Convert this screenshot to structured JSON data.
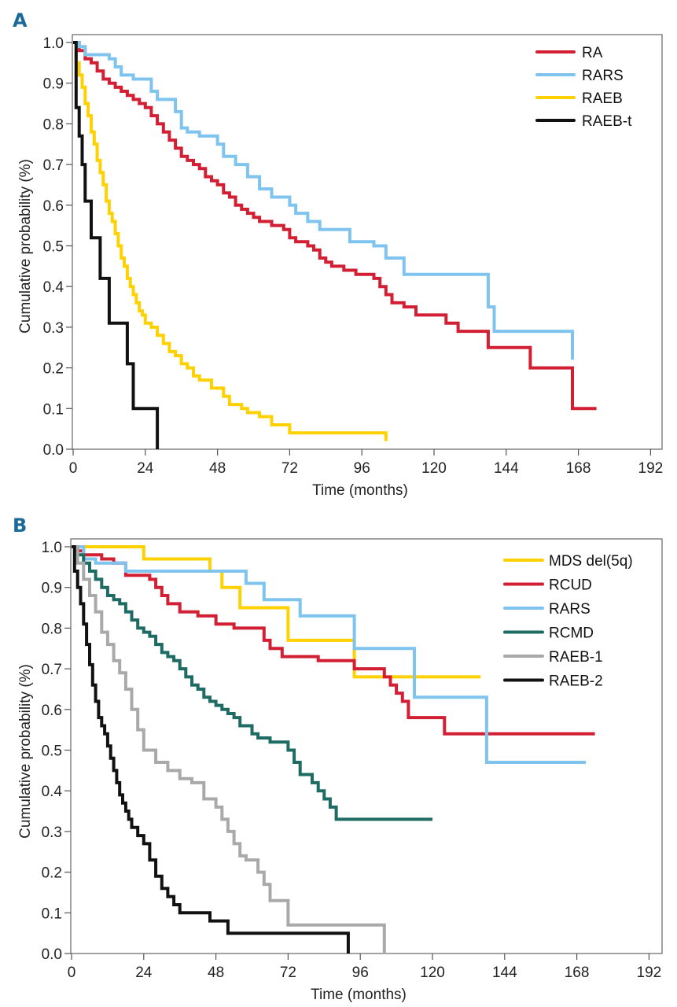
{
  "chart_data": [
    {
      "panel": "A",
      "type": "line",
      "subtype": "kaplan-meier-step",
      "title": "",
      "xlabel": "Time (months)",
      "ylabel": "Cumulative probability (%)",
      "xlim": [
        0,
        192
      ],
      "ylim": [
        0,
        1.0
      ],
      "xticks": [
        "0",
        "24",
        "48",
        "72",
        "96",
        "120",
        "144",
        "168",
        "192"
      ],
      "xtick_values": [
        0,
        24,
        48,
        72,
        96,
        120,
        144,
        168,
        192
      ],
      "yticks": [
        "0.0",
        "0.1",
        "0.2",
        "0.3",
        "0.4",
        "0.5",
        "0.6",
        "0.7",
        "0.8",
        "0.9",
        "1.0"
      ],
      "ytick_values": [
        0,
        0.1,
        0.2,
        0.3,
        0.4,
        0.5,
        0.6,
        0.7,
        0.8,
        0.9,
        1.0
      ],
      "grid": false,
      "legend_position": "top-right",
      "series": [
        {
          "name": "RA",
          "color": "#d21f34",
          "x": [
            0,
            2,
            4,
            6,
            8,
            10,
            12,
            14,
            16,
            18,
            20,
            22,
            24,
            26,
            28,
            30,
            32,
            34,
            36,
            38,
            40,
            42,
            44,
            46,
            48,
            50,
            52,
            54,
            56,
            58,
            60,
            62,
            64,
            66,
            70,
            72,
            74,
            78,
            80,
            82,
            84,
            86,
            90,
            94,
            96,
            100,
            102,
            104,
            106,
            110,
            114,
            124,
            128,
            138,
            152,
            166,
            174
          ],
          "y": [
            1.0,
            0.98,
            0.96,
            0.95,
            0.93,
            0.91,
            0.9,
            0.89,
            0.88,
            0.87,
            0.86,
            0.85,
            0.84,
            0.82,
            0.8,
            0.78,
            0.76,
            0.74,
            0.72,
            0.71,
            0.7,
            0.69,
            0.67,
            0.66,
            0.65,
            0.63,
            0.62,
            0.6,
            0.59,
            0.58,
            0.57,
            0.56,
            0.56,
            0.55,
            0.54,
            0.52,
            0.51,
            0.5,
            0.49,
            0.47,
            0.46,
            0.45,
            0.44,
            0.43,
            0.43,
            0.42,
            0.4,
            0.38,
            0.36,
            0.35,
            0.33,
            0.31,
            0.29,
            0.25,
            0.2,
            0.1,
            0.1
          ]
        },
        {
          "name": "RARS",
          "color": "#7fc4ef",
          "x": [
            0,
            2,
            4,
            12,
            14,
            16,
            20,
            26,
            28,
            34,
            36,
            38,
            42,
            48,
            50,
            54,
            58,
            62,
            66,
            72,
            74,
            78,
            82,
            92,
            100,
            104,
            110,
            138,
            140,
            166
          ],
          "y": [
            1.0,
            0.99,
            0.97,
            0.96,
            0.94,
            0.92,
            0.91,
            0.88,
            0.86,
            0.83,
            0.79,
            0.78,
            0.77,
            0.75,
            0.72,
            0.7,
            0.67,
            0.64,
            0.62,
            0.6,
            0.58,
            0.56,
            0.54,
            0.51,
            0.5,
            0.47,
            0.43,
            0.35,
            0.29,
            0.22
          ],
          "end_x": 166
        },
        {
          "name": "RAEB",
          "color": "#ffd100",
          "x": [
            0,
            1,
            2,
            3,
            4,
            5,
            6,
            7,
            8,
            9,
            10,
            11,
            12,
            13,
            14,
            15,
            16,
            17,
            18,
            19,
            20,
            21,
            22,
            23,
            24,
            26,
            28,
            30,
            32,
            34,
            36,
            38,
            40,
            42,
            46,
            50,
            52,
            56,
            58,
            62,
            66,
            72,
            104
          ],
          "y": [
            1.0,
            0.95,
            0.92,
            0.89,
            0.85,
            0.82,
            0.78,
            0.75,
            0.71,
            0.68,
            0.65,
            0.61,
            0.58,
            0.56,
            0.53,
            0.5,
            0.47,
            0.45,
            0.42,
            0.4,
            0.38,
            0.36,
            0.34,
            0.33,
            0.31,
            0.3,
            0.28,
            0.26,
            0.24,
            0.23,
            0.21,
            0.2,
            0.18,
            0.17,
            0.15,
            0.13,
            0.11,
            0.1,
            0.09,
            0.08,
            0.06,
            0.04,
            0.02
          ],
          "end_x": 104
        },
        {
          "name": "RAEB-t",
          "color": "#111111",
          "x": [
            0,
            1,
            2,
            3,
            4,
            6,
            9,
            12,
            18,
            20,
            28
          ],
          "y": [
            1.0,
            0.84,
            0.77,
            0.7,
            0.61,
            0.52,
            0.42,
            0.31,
            0.21,
            0.1,
            0.0
          ],
          "end_x": 28
        }
      ]
    },
    {
      "panel": "B",
      "type": "line",
      "subtype": "kaplan-meier-step",
      "title": "",
      "xlabel": "Time (months)",
      "ylabel": "Cumulative probability (%)",
      "xlim": [
        0,
        192
      ],
      "ylim": [
        0,
        1.0
      ],
      "xticks": [
        "0",
        "24",
        "48",
        "72",
        "96",
        "120",
        "144",
        "168",
        "192"
      ],
      "xtick_values": [
        0,
        24,
        48,
        72,
        96,
        120,
        144,
        168,
        192
      ],
      "yticks": [
        "0.0",
        "0.1",
        "0.2",
        "0.3",
        "0.4",
        "0.5",
        "0.6",
        "0.7",
        "0.8",
        "0.9",
        "1.0"
      ],
      "ytick_values": [
        0,
        0.1,
        0.2,
        0.3,
        0.4,
        0.5,
        0.6,
        0.7,
        0.8,
        0.9,
        1.0
      ],
      "grid": false,
      "legend_position": "top-right",
      "series": [
        {
          "name": "MDS del(5q)",
          "color": "#ffd100",
          "x": [
            0,
            24,
            46,
            50,
            56,
            62,
            72,
            94
          ],
          "y": [
            1.0,
            0.97,
            0.94,
            0.9,
            0.85,
            0.85,
            0.77,
            0.68
          ],
          "end_x": 136
        },
        {
          "name": "RCUD",
          "color": "#d21f34",
          "x": [
            0,
            2,
            4,
            10,
            14,
            18,
            26,
            28,
            30,
            32,
            36,
            42,
            48,
            54,
            60,
            64,
            66,
            70,
            82,
            94,
            104,
            106,
            108,
            110,
            112,
            124
          ],
          "y": [
            1.0,
            0.99,
            0.98,
            0.97,
            0.96,
            0.93,
            0.92,
            0.9,
            0.88,
            0.86,
            0.84,
            0.83,
            0.81,
            0.8,
            0.8,
            0.77,
            0.75,
            0.73,
            0.72,
            0.7,
            0.68,
            0.66,
            0.64,
            0.62,
            0.58,
            0.54
          ],
          "end_x": 174
        },
        {
          "name": "RARS",
          "color": "#7fc4ef",
          "x": [
            0,
            4,
            8,
            18,
            46,
            58,
            64,
            76,
            94,
            114,
            138
          ],
          "y": [
            1.0,
            0.97,
            0.96,
            0.94,
            0.94,
            0.91,
            0.87,
            0.83,
            0.75,
            0.63,
            0.47
          ],
          "end_x": 171
        },
        {
          "name": "RCMD",
          "color": "#1d6b62",
          "x": [
            0,
            2,
            4,
            6,
            8,
            10,
            12,
            14,
            16,
            18,
            20,
            22,
            24,
            26,
            28,
            30,
            32,
            34,
            36,
            38,
            40,
            42,
            44,
            46,
            48,
            50,
            52,
            54,
            56,
            58,
            60,
            62,
            66,
            72,
            74,
            76,
            80,
            82,
            84,
            86,
            88
          ],
          "y": [
            1.0,
            0.98,
            0.96,
            0.94,
            0.92,
            0.9,
            0.88,
            0.87,
            0.86,
            0.84,
            0.82,
            0.8,
            0.79,
            0.78,
            0.76,
            0.74,
            0.73,
            0.72,
            0.7,
            0.68,
            0.66,
            0.65,
            0.63,
            0.62,
            0.61,
            0.6,
            0.59,
            0.58,
            0.56,
            0.56,
            0.54,
            0.53,
            0.52,
            0.5,
            0.47,
            0.44,
            0.42,
            0.4,
            0.38,
            0.36,
            0.33
          ],
          "end_x": 120
        },
        {
          "name": "RAEB-1",
          "color": "#a9a9a9",
          "x": [
            0,
            2,
            4,
            6,
            8,
            10,
            12,
            14,
            16,
            18,
            20,
            22,
            24,
            28,
            32,
            36,
            40,
            44,
            48,
            50,
            52,
            54,
            56,
            58,
            62,
            64,
            66,
            72,
            104
          ],
          "y": [
            1.0,
            0.96,
            0.92,
            0.88,
            0.84,
            0.79,
            0.76,
            0.72,
            0.69,
            0.65,
            0.6,
            0.55,
            0.5,
            0.47,
            0.45,
            0.43,
            0.42,
            0.38,
            0.36,
            0.33,
            0.3,
            0.27,
            0.24,
            0.23,
            0.2,
            0.17,
            0.13,
            0.07,
            0.0
          ],
          "end_x": 104
        },
        {
          "name": "RAEB-2",
          "color": "#111111",
          "x": [
            0,
            1,
            2,
            3,
            4,
            5,
            6,
            7,
            8,
            9,
            10,
            11,
            12,
            13,
            14,
            15,
            16,
            17,
            18,
            19,
            20,
            22,
            24,
            26,
            28,
            30,
            32,
            34,
            36,
            46,
            48,
            52,
            92
          ],
          "y": [
            1.0,
            0.94,
            0.9,
            0.86,
            0.81,
            0.76,
            0.71,
            0.66,
            0.62,
            0.58,
            0.56,
            0.54,
            0.51,
            0.48,
            0.45,
            0.42,
            0.39,
            0.37,
            0.35,
            0.33,
            0.31,
            0.29,
            0.27,
            0.23,
            0.19,
            0.16,
            0.14,
            0.12,
            0.1,
            0.08,
            0.08,
            0.05,
            0.0
          ],
          "end_x": 92
        }
      ]
    }
  ]
}
